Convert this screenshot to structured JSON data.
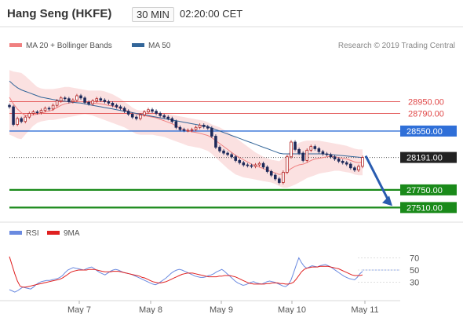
{
  "header": {
    "title": "Hang Seng (HKFE)",
    "timeframe": "30 MIN",
    "time": "02:20:00 CET"
  },
  "legend": {
    "items": [
      {
        "label": "MA 20 + Bollinger Bands",
        "color": "#f08080"
      },
      {
        "label": "MA 50",
        "color": "#336699"
      }
    ],
    "credit": "Research © 2019 Trading Central"
  },
  "chart_data": [
    {
      "type": "candlestick",
      "ylim": [
        27450,
        29350
      ],
      "x_labels": [
        "May 7",
        "May 8",
        "May 9",
        "May 10",
        "May 11"
      ],
      "levels": [
        {
          "label": "28950.00",
          "value": 28950,
          "color": "#e04848",
          "style": "resistance"
        },
        {
          "label": "28790.00",
          "value": 28790,
          "color": "#e04848",
          "style": "resistance"
        },
        {
          "label": "28550.00",
          "value": 28550,
          "color": "#2f6fd8",
          "style": "pivot"
        },
        {
          "label": "28191.00",
          "value": 28191,
          "color": "#222222",
          "style": "last-price"
        },
        {
          "label": "27750.00",
          "value": 27750,
          "color": "#1a8a1a",
          "style": "support"
        },
        {
          "label": "27510.00",
          "value": 27510,
          "color": "#1a8a1a",
          "style": "support"
        }
      ],
      "close": [
        28880,
        28640,
        28720,
        28680,
        28740,
        28790,
        28810,
        28800,
        28830,
        28860,
        28850,
        28900,
        28960,
        29000,
        28990,
        28950,
        28970,
        29030,
        29000,
        28940,
        28920,
        28960,
        28990,
        28970,
        28950,
        28930,
        28900,
        28880,
        28860,
        28820,
        28780,
        28740,
        28720,
        28770,
        28810,
        28840,
        28820,
        28790,
        28760,
        28740,
        28720,
        28680,
        28600,
        28570,
        28560,
        28560,
        28570,
        28600,
        28630,
        28610,
        28590,
        28480,
        28330,
        28280,
        28250,
        28230,
        28200,
        28150,
        28120,
        28090,
        28080,
        28070,
        28090,
        28110,
        28060,
        28000,
        27950,
        27900,
        27850,
        27990,
        28200,
        28400,
        28300,
        28250,
        28150,
        28290,
        28340,
        28310,
        28270,
        28240,
        28230,
        28200,
        28170,
        28140,
        28120,
        28100,
        28050,
        28020,
        28070,
        28191
      ],
      "ma20": [
        29010,
        28920,
        28850,
        28800,
        28760,
        28760,
        28770,
        28780,
        28790,
        28810,
        28820,
        28840,
        28870,
        28900,
        28920,
        28930,
        28940,
        28950,
        28950,
        28945,
        28935,
        28930,
        28925,
        28920,
        28910,
        28900,
        28890,
        28875,
        28860,
        28840,
        28820,
        28800,
        28780,
        28770,
        28760,
        28750,
        28740,
        28730,
        28710,
        28690,
        28670,
        28650,
        28620,
        28590,
        28570,
        28550,
        28540,
        28530,
        28520,
        28505,
        28490,
        28460,
        28420,
        28380,
        28340,
        28300,
        28260,
        28220,
        28190,
        28160,
        28130,
        28100,
        28080,
        28060,
        28040,
        28020,
        28000,
        27980,
        27960,
        27970,
        28000,
        28040,
        28070,
        28090,
        28100,
        28120,
        28150,
        28170,
        28180,
        28190,
        28200,
        28205,
        28200,
        28190,
        28180,
        28170,
        28150,
        28130,
        28120,
        28130
      ],
      "ma50": [
        29230,
        29180,
        29140,
        29110,
        29090,
        29070,
        29050,
        29030,
        29010,
        29000,
        28990,
        28980,
        28970,
        28960,
        28955,
        28950,
        28940,
        28935,
        28930,
        28920,
        28910,
        28900,
        28890,
        28880,
        28870,
        28860,
        28850,
        28840,
        28830,
        28820,
        28810,
        28800,
        28790,
        28780,
        28770,
        28760,
        28750,
        28740,
        28730,
        28720,
        28710,
        28700,
        28690,
        28680,
        28670,
        28660,
        28650,
        28640,
        28630,
        28620,
        28610,
        28590,
        28570,
        28550,
        28530,
        28510,
        28490,
        28470,
        28450,
        28430,
        28410,
        28390,
        28370,
        28350,
        28330,
        28310,
        28290,
        28270,
        28250,
        28240,
        28240,
        28240,
        28240,
        28240,
        28240,
        28240,
        28240,
        28240,
        28240,
        28240,
        28235,
        28230,
        28225,
        28220,
        28215,
        28210,
        28205,
        28200,
        28195,
        28190
      ],
      "bb_upper": [
        29380,
        29360,
        29350,
        29340,
        29300,
        29250,
        29200,
        29150,
        29130,
        29120,
        29120,
        29120,
        29130,
        29140,
        29150,
        29150,
        29140,
        29130,
        29120,
        29110,
        29100,
        29100,
        29100,
        29100,
        29090,
        29070,
        29050,
        29020,
        28990,
        28950,
        28910,
        28870,
        28840,
        28830,
        28830,
        28830,
        28820,
        28810,
        28800,
        28790,
        28780,
        28770,
        28760,
        28750,
        28740,
        28730,
        28720,
        28710,
        28700,
        28690,
        28670,
        28640,
        28620,
        28600,
        28570,
        28540,
        28500,
        28460,
        28420,
        28380,
        28340,
        28300,
        28260,
        28230,
        28200,
        28180,
        28160,
        28150,
        28140,
        28180,
        28230,
        28290,
        28350,
        28390,
        28410,
        28420,
        28420,
        28420,
        28420,
        28410,
        28400,
        28390,
        28380,
        28370,
        28360,
        28350,
        28330,
        28310,
        28300,
        28300
      ],
      "bb_lower": [
        28500,
        28480,
        28450,
        28440,
        28500,
        28560,
        28620,
        28660,
        28680,
        28690,
        28700,
        28700,
        28710,
        28720,
        28730,
        28740,
        28750,
        28760,
        28770,
        28780,
        28770,
        28760,
        28740,
        28720,
        28700,
        28680,
        28660,
        28640,
        28620,
        28600,
        28570,
        28540,
        28510,
        28500,
        28500,
        28500,
        28500,
        28490,
        28480,
        28470,
        28450,
        28430,
        28410,
        28390,
        28370,
        28350,
        28340,
        28330,
        28320,
        28300,
        28280,
        28240,
        28190,
        28140,
        28090,
        28040,
        28000,
        27960,
        27940,
        27920,
        27910,
        27900,
        27890,
        27880,
        27870,
        27860,
        27850,
        27830,
        27800,
        27780,
        27780,
        27800,
        27820,
        27850,
        27880,
        27910,
        27930,
        27950,
        27970,
        27980,
        27990,
        28000,
        28010,
        28010,
        28000,
        27990,
        27980,
        27960,
        27950,
        27950
      ]
    },
    {
      "type": "line",
      "title": "RSI",
      "ylim": [
        0,
        100
      ],
      "y_ticks": [
        70,
        50,
        30
      ],
      "series": [
        {
          "name": "RSI",
          "color": "#6a8ae0",
          "values": [
            18,
            16,
            14,
            16,
            19,
            22,
            21,
            20,
            19,
            22,
            26,
            29,
            31,
            32,
            33,
            33,
            34,
            35,
            36,
            38,
            41,
            46,
            50,
            52,
            54,
            53,
            52,
            51,
            50,
            52,
            54,
            55,
            52,
            49,
            46,
            44,
            42,
            45,
            48,
            50,
            51,
            50,
            48,
            46,
            45,
            44,
            43,
            41,
            39,
            37,
            35,
            33,
            31,
            29,
            27,
            26,
            28,
            31,
            34,
            37,
            41,
            45,
            48,
            50,
            51,
            50,
            48,
            46,
            44,
            42,
            40,
            39,
            38,
            38,
            39,
            41,
            42,
            44,
            47,
            49,
            51,
            48,
            44,
            40,
            36,
            32,
            29,
            27,
            25,
            26,
            28,
            30,
            31,
            29,
            28,
            27,
            29,
            31,
            32,
            31,
            30,
            28,
            26,
            24,
            23,
            26,
            33,
            45,
            58,
            70,
            62,
            56,
            53,
            55,
            57,
            56,
            55,
            57,
            58,
            59,
            57,
            55,
            52,
            49,
            46,
            43,
            40,
            38,
            36,
            35,
            34,
            38,
            44,
            48
          ]
        },
        {
          "name": "9MA",
          "color": "#e02020",
          "values": [
            72,
            58,
            44,
            32,
            24,
            22,
            22,
            23,
            24,
            25,
            26,
            27,
            28,
            29,
            30,
            31,
            32,
            33,
            34,
            35,
            37,
            40,
            43,
            46,
            48,
            49,
            50,
            50,
            50,
            50,
            51,
            51,
            51,
            50,
            49,
            48,
            47,
            47,
            47,
            48,
            48,
            48,
            47,
            46,
            45,
            44,
            43,
            42,
            41,
            40,
            38,
            37,
            35,
            33,
            31,
            30,
            29,
            29,
            30,
            31,
            33,
            35,
            37,
            39,
            41,
            43,
            44,
            45,
            45,
            45,
            44,
            43,
            42,
            41,
            40,
            39,
            39,
            39,
            39,
            40,
            40,
            41,
            41,
            41,
            40,
            39,
            37,
            35,
            33,
            31,
            29,
            28,
            27,
            27,
            27,
            27,
            27,
            28,
            28,
            29,
            29,
            29,
            28,
            28,
            27,
            27,
            28,
            30,
            35,
            41,
            47,
            51,
            53,
            54,
            55,
            55,
            55,
            56,
            56,
            56,
            56,
            55,
            54,
            53,
            52,
            50,
            48,
            46,
            44,
            42,
            41,
            41,
            41,
            42
          ]
        }
      ],
      "reference_value": 50
    }
  ]
}
